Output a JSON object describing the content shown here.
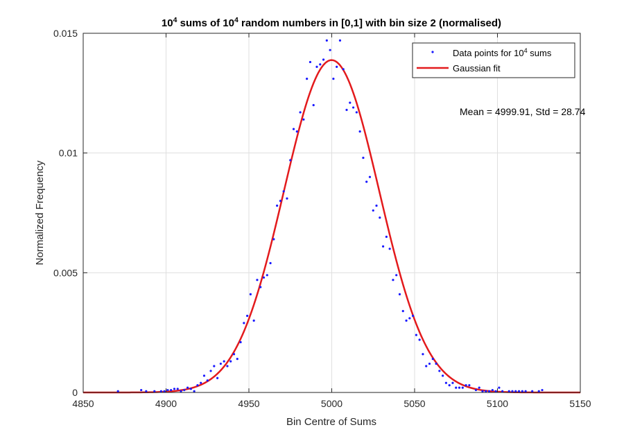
{
  "chart_data": {
    "type": "scatter",
    "title": {
      "parts": [
        {
          "text": "10",
          "sup": false
        },
        {
          "text": "4",
          "sup": true
        },
        {
          "text": " sums of 10",
          "sup": false
        },
        {
          "text": "4",
          "sup": true
        },
        {
          "text": " random numbers in [0,1] with bin size 2 (normalised)",
          "sup": false
        }
      ]
    },
    "xlabel": "Bin Centre of Sums",
    "ylabel": "Normalized Frequency",
    "xlim": [
      4850,
      5150
    ],
    "ylim": [
      0,
      0.015
    ],
    "xticks": [
      4850,
      4900,
      4950,
      5000,
      5050,
      5100,
      5150
    ],
    "xtick_labels": [
      "4850",
      "4900",
      "4950",
      "5000",
      "5050",
      "5100",
      "5150"
    ],
    "yticks": [
      0,
      0.005,
      0.01,
      0.015
    ],
    "ytick_labels": [
      "0",
      "0.005",
      "0.01",
      "0.015"
    ],
    "grid": true,
    "legend_position": "top-right",
    "annotation": "Mean = 4999.91, Std = 28.74",
    "series": [
      {
        "name": "Data points for 10^4 sums",
        "name_parts": [
          {
            "text": "Data points for 10",
            "sup": false
          },
          {
            "text": "4",
            "sup": true
          },
          {
            "text": " sums",
            "sup": false
          }
        ],
        "kind": "points",
        "color": "#1a1aff",
        "x": [
          4871,
          4885,
          4888,
          4893,
          4897,
          4899,
          4901,
          4903,
          4905,
          4907,
          4909,
          4911,
          4913,
          4915,
          4917,
          4919,
          4921,
          4923,
          4925,
          4927,
          4929,
          4931,
          4933,
          4935,
          4937,
          4939,
          4941,
          4943,
          4945,
          4947,
          4949,
          4951,
          4953,
          4955,
          4957,
          4959,
          4961,
          4963,
          4965,
          4967,
          4969,
          4971,
          4973,
          4975,
          4977,
          4979,
          4981,
          4983,
          4985,
          4987,
          4989,
          4991,
          4993,
          4995,
          4997,
          4999,
          5001,
          5003,
          5005,
          5007,
          5009,
          5011,
          5013,
          5015,
          5017,
          5019,
          5021,
          5023,
          5025,
          5027,
          5029,
          5031,
          5033,
          5035,
          5037,
          5039,
          5041,
          5043,
          5045,
          5047,
          5049,
          5051,
          5053,
          5055,
          5057,
          5059,
          5061,
          5063,
          5065,
          5067,
          5069,
          5071,
          5073,
          5075,
          5077,
          5079,
          5081,
          5083,
          5087,
          5089,
          5091,
          5093,
          5095,
          5097,
          5099,
          5101,
          5103,
          5107,
          5109,
          5111,
          5113,
          5115,
          5117,
          5121,
          5125,
          5127
        ],
        "y": [
          5e-05,
          0.0001,
          5e-05,
          5e-05,
          5e-05,
          5e-05,
          0.0001,
          0.0001,
          0.00015,
          0.00015,
          5e-05,
          0.0001,
          0.0002,
          0.00015,
          5e-05,
          0.0003,
          0.0004,
          0.0007,
          0.0005,
          0.0009,
          0.0011,
          0.0006,
          0.0012,
          0.0013,
          0.0011,
          0.0013,
          0.0016,
          0.0014,
          0.0021,
          0.0029,
          0.0032,
          0.0041,
          0.003,
          0.0047,
          0.0044,
          0.0048,
          0.0049,
          0.0054,
          0.0064,
          0.0078,
          0.008,
          0.0084,
          0.0081,
          0.0097,
          0.011,
          0.0109,
          0.0117,
          0.0114,
          0.0131,
          0.0138,
          0.012,
          0.0136,
          0.0137,
          0.0139,
          0.0147,
          0.0143,
          0.0131,
          0.0136,
          0.0147,
          0.0135,
          0.0118,
          0.0121,
          0.0119,
          0.0117,
          0.0109,
          0.0098,
          0.0088,
          0.009,
          0.0076,
          0.0078,
          0.0073,
          0.0061,
          0.0065,
          0.006,
          0.0047,
          0.0049,
          0.0041,
          0.0034,
          0.003,
          0.0031,
          0.0032,
          0.0024,
          0.0022,
          0.0016,
          0.0011,
          0.0012,
          0.0014,
          0.0012,
          0.0009,
          0.0007,
          0.0004,
          0.0003,
          0.0004,
          0.0002,
          0.0002,
          0.0002,
          0.0003,
          0.0003,
          0.0001,
          0.0002,
          5e-05,
          5e-05,
          5e-05,
          0.0001,
          5e-05,
          0.0002,
          5e-05,
          5e-05,
          5e-05,
          5e-05,
          5e-05,
          5e-05,
          5e-05,
          5e-05,
          5e-05,
          0.0001
        ]
      },
      {
        "name": "Gaussian fit",
        "kind": "line",
        "color": "#e31a1c",
        "mean": 4999.91,
        "std": 28.74,
        "peak": 0.01388
      }
    ]
  }
}
